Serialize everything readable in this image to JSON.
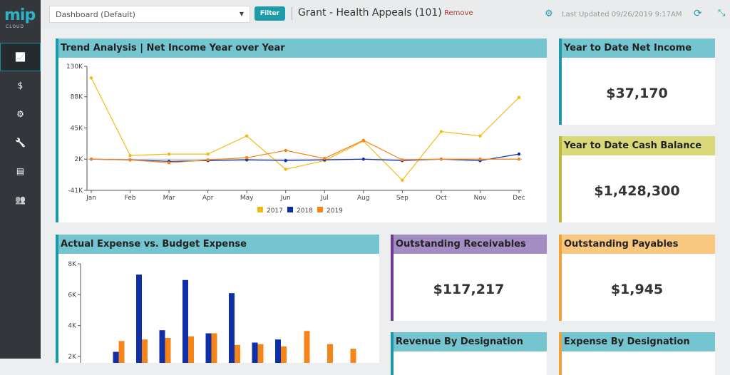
{
  "sidebar": {
    "logo": "mip",
    "logo_sub": "CLOUD",
    "items": [
      {
        "icon": "chart-line-icon",
        "glyph": "📈"
      },
      {
        "icon": "dollar-icon",
        "glyph": "$"
      },
      {
        "icon": "cogs-icon",
        "glyph": "⚙"
      },
      {
        "icon": "wrench-icon",
        "glyph": "🔧"
      },
      {
        "icon": "document-icon",
        "glyph": "▤"
      },
      {
        "icon": "users-icon",
        "glyph": "👥"
      }
    ]
  },
  "topbar": {
    "dashboard_select": "Dashboard (Default)",
    "filter_label": "Filter",
    "grant_title": "Grant - Health Appeals (101)",
    "remove_label": "Remove",
    "last_updated": "Last Updated 09/26/2019 9:17AM"
  },
  "cards": {
    "trend": {
      "title": "Trend Analysis | Net Income Year over Year"
    },
    "ytd_net": {
      "title": "Year to Date Net Income",
      "value": "$37,170",
      "color": "#74c5cf"
    },
    "ytd_cash": {
      "title": "Year to Date Cash Balance",
      "value": "$1,428,300",
      "color": "#d9d97a"
    },
    "expense": {
      "title": "Actual Expense vs. Budget Expense"
    },
    "receivables": {
      "title": "Outstanding Receivables",
      "value": "$117,217",
      "color": "#a48dc3"
    },
    "payables": {
      "title": "Outstanding Payables",
      "value": "$1,945",
      "color": "#f9c880"
    },
    "revenue_designation": {
      "title": "Revenue By Designation"
    },
    "expense_designation": {
      "title": "Expense By Designation"
    }
  },
  "chart_data": [
    {
      "type": "line",
      "ylim": [
        -41,
        130
      ],
      "yticks": [
        "130K",
        "88K",
        "45K",
        "2K",
        "-41K"
      ],
      "ytick_values": [
        130,
        88,
        45,
        2,
        -41
      ],
      "categories": [
        "Jan",
        "Feb",
        "Mar",
        "Apr",
        "May",
        "Jun",
        "Jul",
        "Aug",
        "Sep",
        "Oct",
        "Nov",
        "Dec"
      ],
      "legend": "bottom",
      "series": [
        {
          "name": "2017",
          "color": "#f5b915",
          "values": [
            114,
            7,
            9,
            9,
            34,
            -12,
            0,
            27,
            -27,
            40,
            34,
            87
          ]
        },
        {
          "name": "2018",
          "color": "#0f2fa8",
          "values": [
            2,
            1,
            -1,
            0,
            1,
            0,
            1,
            2,
            0,
            2,
            0,
            9
          ]
        },
        {
          "name": "2019",
          "color": "#f58518",
          "values": [
            2,
            1,
            -3,
            1,
            4,
            14,
            3,
            28,
            1,
            2,
            2,
            2
          ]
        }
      ]
    },
    {
      "type": "bar",
      "ylim": [
        2,
        8
      ],
      "yticks": [
        "8K",
        "6K",
        "4K",
        "2K"
      ],
      "ytick_values": [
        8,
        6,
        4,
        2
      ],
      "series": [
        {
          "color": "#0f2fa8",
          "values": [
            null,
            2.3,
            7.3,
            3.7,
            6.95,
            3.5,
            6.1,
            2.9,
            3.1,
            null,
            null,
            null
          ]
        },
        {
          "color": "#f58518",
          "values": [
            null,
            3.0,
            3.1,
            3.2,
            3.3,
            3.5,
            2.75,
            2.8,
            2.65,
            3.65,
            2.8,
            2.5
          ]
        }
      ]
    }
  ]
}
